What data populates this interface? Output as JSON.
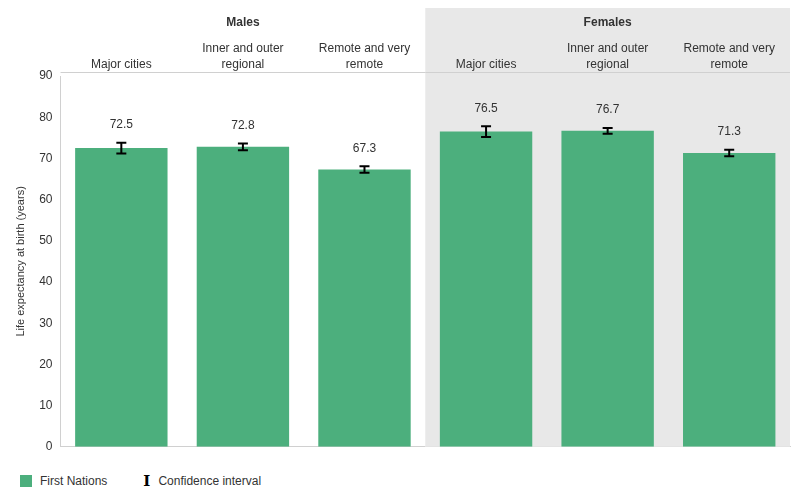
{
  "chart_data": {
    "type": "bar",
    "category_groups": [
      {
        "name": "Males",
        "categories": [
          "Major cities",
          "Inner and outer regional",
          "Remote and very remote"
        ]
      },
      {
        "name": "Females",
        "categories": [
          "Major cities",
          "Inner and outer regional",
          "Remote and very remote"
        ]
      }
    ],
    "y_label": "Life expectancy at birth (years)",
    "series": [
      {
        "name": "First Nations",
        "color": "#4caf7d",
        "values": [
          72.5,
          72.8,
          67.3,
          76.5,
          76.7,
          71.3
        ],
        "ci_low": [
          71.2,
          72.0,
          66.5,
          75.2,
          76.0,
          70.5
        ],
        "ci_high": [
          73.8,
          73.6,
          68.1,
          77.8,
          77.4,
          72.1
        ]
      }
    ],
    "error_bar_label": "Confidence interval",
    "ylim": [
      0,
      90
    ],
    "yticks": [
      0,
      10,
      20,
      30,
      40,
      50,
      60,
      70,
      80,
      90
    ],
    "grid": false,
    "legend": "bottom-left",
    "data_labels": true
  }
}
